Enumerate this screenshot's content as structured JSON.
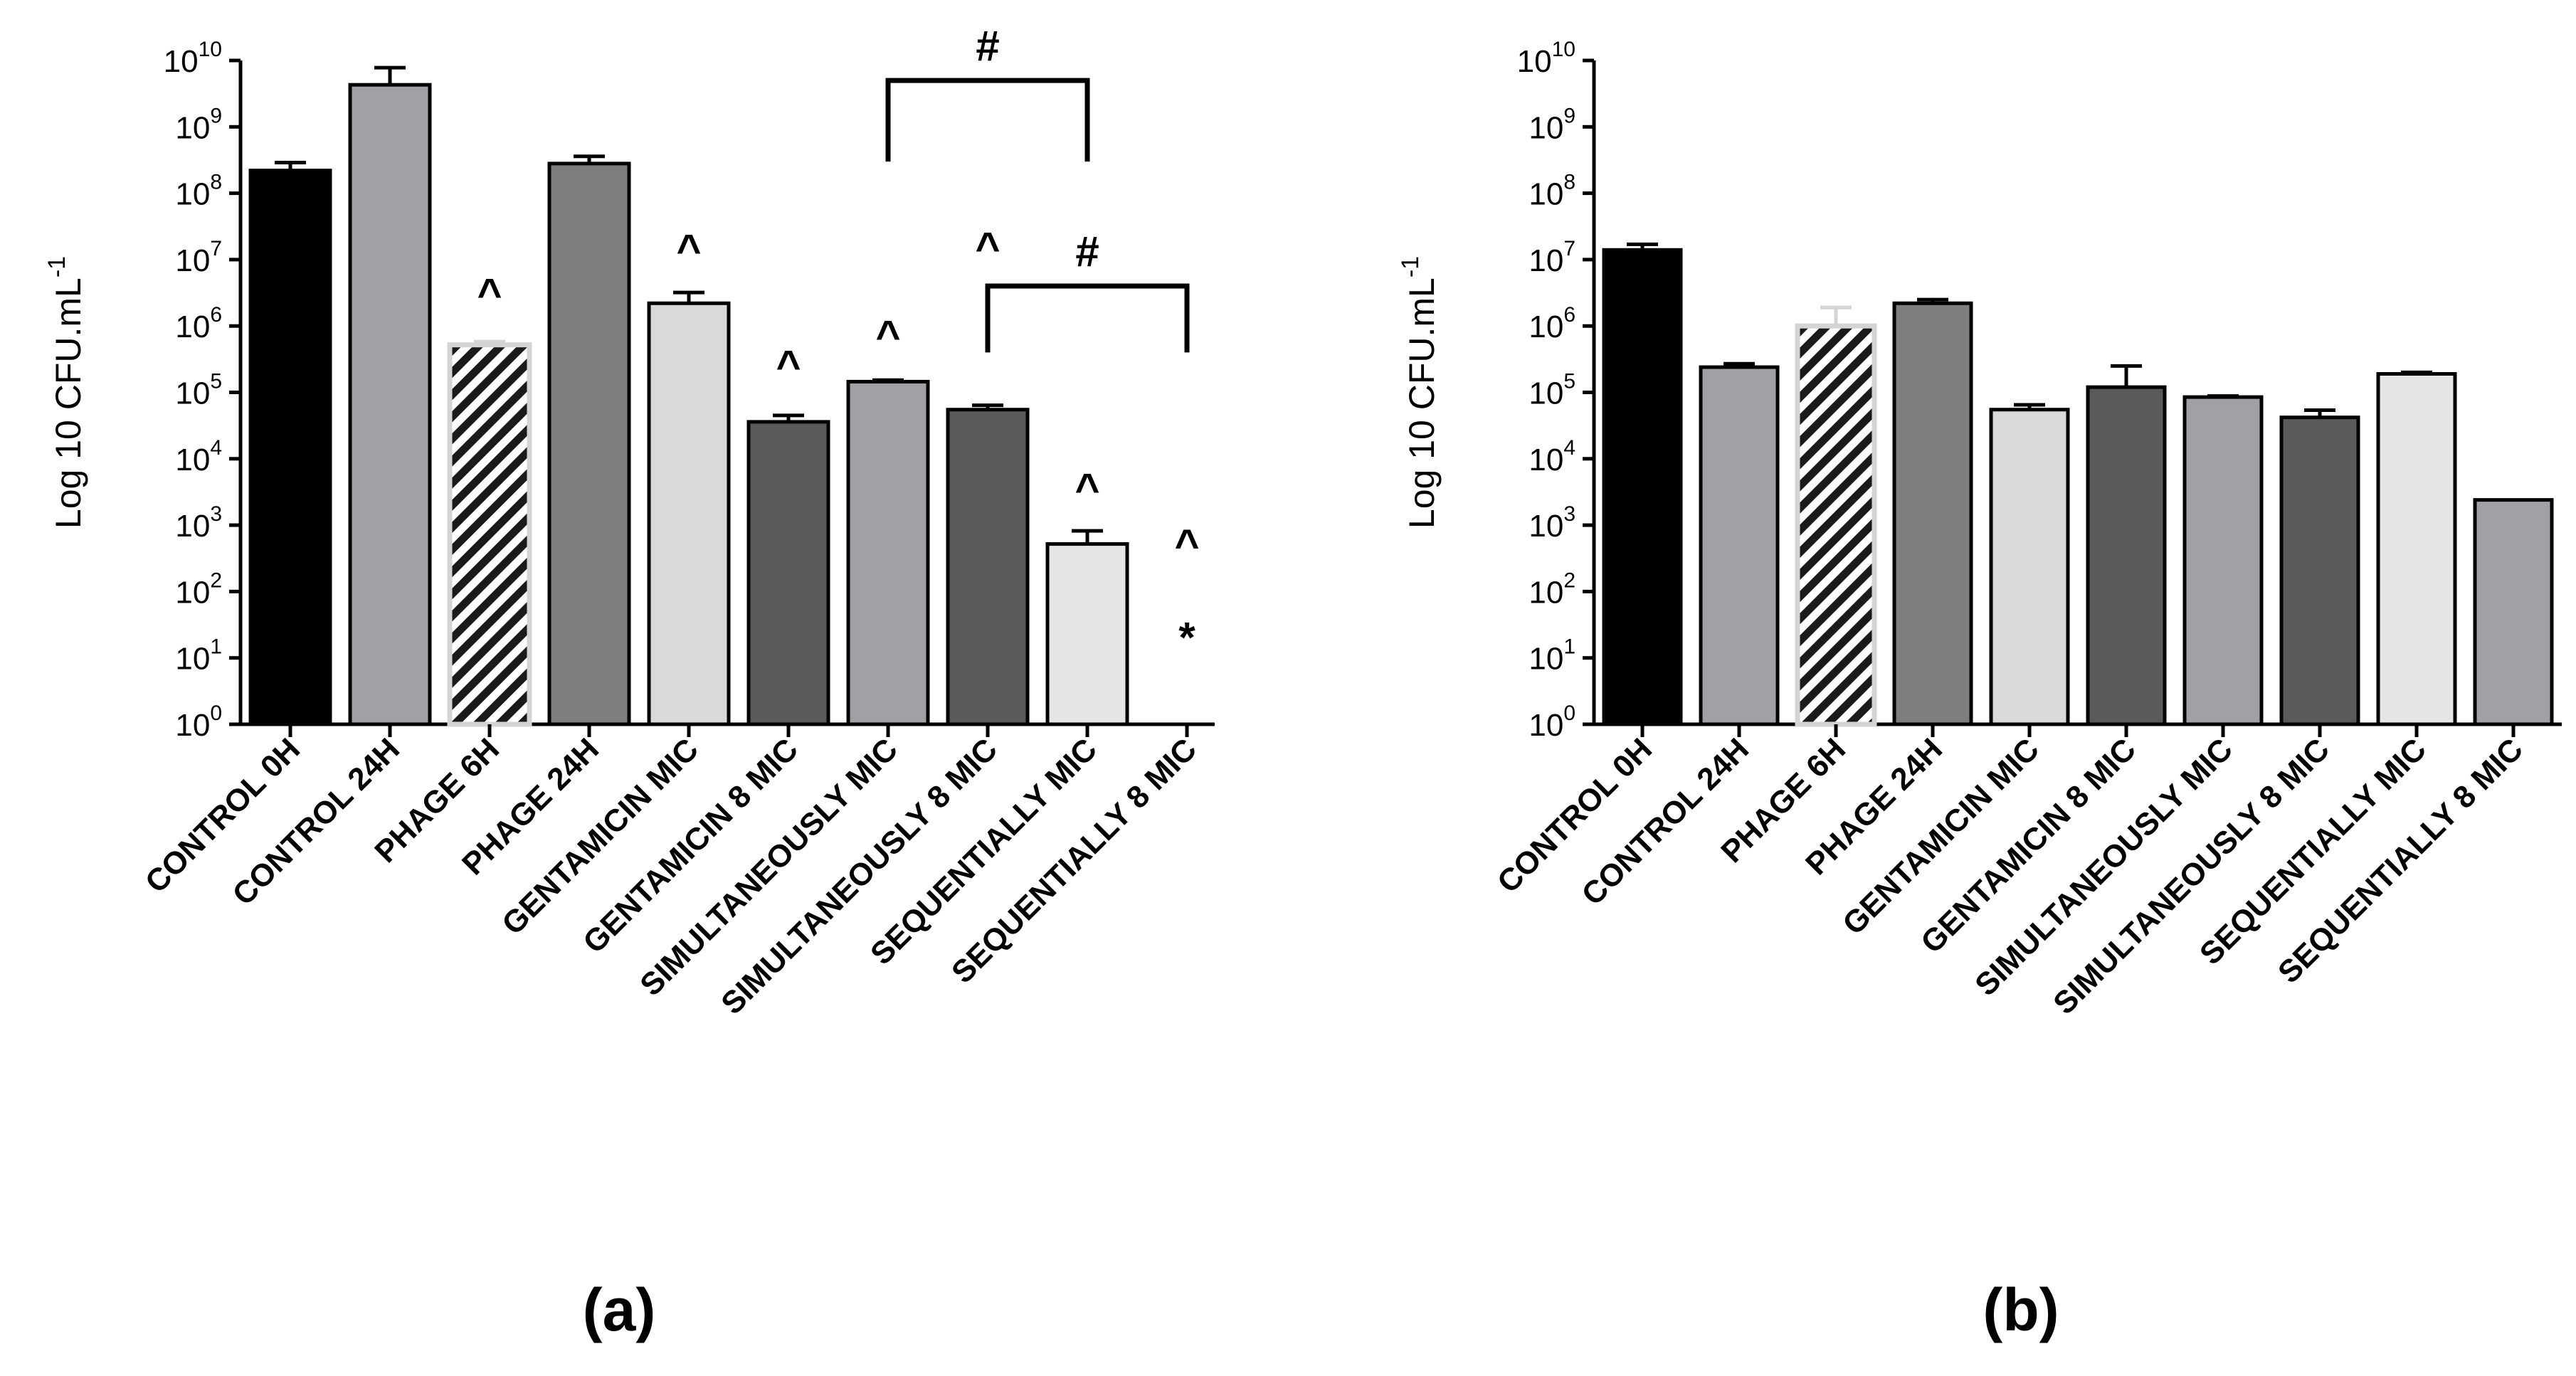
{
  "chart_data": [
    {
      "panel": "(a)",
      "type": "bar",
      "ylabel": "Log 10 CFU.mL",
      "ylabel_superscript": "-1",
      "yscale": "log",
      "ylim": [
        1,
        10000000000
      ],
      "ytick_base": "10",
      "ytick_exponents": [
        "0",
        "1",
        "2",
        "3",
        "4",
        "5",
        "6",
        "7",
        "8",
        "9",
        "10"
      ],
      "categories": [
        "CONTROL 0H",
        "CONTROL 24H",
        "PHAGE 6H",
        "PHAGE 24H",
        "GENTAMICIN MIC",
        "GENTAMICIN 8 MIC",
        "SIMULTANEOUSLY MIC",
        "SIMULTANEOUSLY 8 MIC",
        "SEQUENTIALLY MIC",
        "SEQUENTIALLY 8 MIC"
      ],
      "values": [
        220000000,
        4300000000,
        520000,
        280000000,
        2200000,
        36000,
        145000,
        55000,
        520,
        1
      ],
      "errors": [
        70000000,
        3500000000,
        60000,
        80000000,
        1000000,
        9000,
        8000,
        9000,
        300,
        0
      ],
      "fills": [
        "#000000",
        "#a0a0a5",
        "#ffffff",
        "#7e7e7e",
        "#d9d9d9",
        "#5a5a5a",
        "#a0a0a5",
        "#5a5a5a",
        "#e6e6e6",
        "#ffffff"
      ],
      "hatched": [
        false,
        false,
        true,
        false,
        false,
        false,
        false,
        false,
        false,
        false
      ],
      "annotations": [
        {
          "category": 2,
          "symbol": "^",
          "value": 3000000
        },
        {
          "category": 4,
          "symbol": "^",
          "value": 14000000
        },
        {
          "category": 5,
          "symbol": "^",
          "value": 250000
        },
        {
          "category": 6,
          "symbol": "^",
          "value": 700000
        },
        {
          "category": 7,
          "symbol": "^",
          "value": 15000000
        },
        {
          "category": 8,
          "symbol": "^",
          "value": 3500
        },
        {
          "category": 9,
          "symbol": "^",
          "value": 500
        },
        {
          "category": 9,
          "symbol": "*",
          "value": 20
        }
      ],
      "brackets": [
        {
          "from": 6,
          "to": 8,
          "symbol": "#",
          "level": 5000000000,
          "drop": 300000000
        },
        {
          "from": 7,
          "to": 9,
          "symbol": "#",
          "level": 4000000,
          "drop": 400000
        }
      ]
    },
    {
      "panel": "(b)",
      "type": "bar",
      "ylabel": "Log 10 CFU.mL",
      "ylabel_superscript": "-1",
      "yscale": "log",
      "ylim": [
        1,
        10000000000
      ],
      "ytick_base": "10",
      "ytick_exponents": [
        "0",
        "1",
        "2",
        "3",
        "4",
        "5",
        "6",
        "7",
        "8",
        "9",
        "10"
      ],
      "categories": [
        "CONTROL 0H",
        "CONTROL 24H",
        "PHAGE 6H",
        "PHAGE 24H",
        "GENTAMICIN MIC",
        "GENTAMICIN 8 MIC",
        "SIMULTANEOUSLY MIC",
        "SIMULTANEOUSLY 8 MIC",
        "SEQUENTIALLY MIC",
        "SEQUENTIALLY 8 MIC"
      ],
      "values": [
        14000000,
        240000,
        1000000,
        2200000,
        55000,
        120000,
        85000,
        42000,
        190000,
        2400
      ],
      "errors": [
        3000000,
        30000,
        900000,
        300000,
        10000,
        130000,
        3000,
        12000,
        10000,
        0
      ],
      "fills": [
        "#000000",
        "#a0a0a5",
        "#ffffff",
        "#7e7e7e",
        "#d9d9d9",
        "#5a5a5a",
        "#a0a0a5",
        "#5a5a5a",
        "#e6e6e6",
        "#a0a0a5"
      ],
      "hatched": [
        false,
        false,
        true,
        false,
        false,
        false,
        false,
        false,
        false,
        false
      ],
      "annotations": [],
      "brackets": []
    }
  ]
}
